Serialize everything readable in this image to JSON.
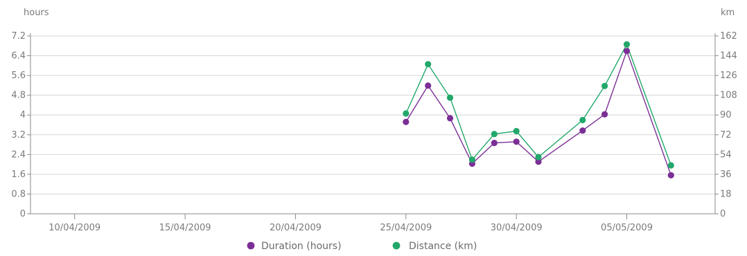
{
  "chart_data": {
    "type": "line",
    "left_axis_label": "hours",
    "right_axis_label": "km",
    "y_left_ticks": [
      "0",
      "0.8",
      "1.6",
      "2.4",
      "3.2",
      "4",
      "4.8",
      "5.6",
      "6.4",
      "7.2"
    ],
    "y_right_ticks": [
      "0",
      "18",
      "36",
      "54",
      "72",
      "90",
      "108",
      "126",
      "144",
      "162"
    ],
    "x_ticks": [
      "10/04/2009",
      "15/04/2009",
      "20/04/2009",
      "25/04/2009",
      "30/04/2009",
      "05/05/2009"
    ],
    "ylim_left": [
      0,
      7.2
    ],
    "ylim_right": [
      0,
      162
    ],
    "grid": true,
    "legend_placement": "bottom",
    "colors": {
      "duration": "#7b2f96",
      "distance": "#22a86b",
      "grid": "#d6d6d6",
      "axis": "#8a8a8a"
    },
    "series": [
      {
        "name": "Duration (hours)",
        "axis": "left",
        "x": [
          "25/04/2009",
          "26/04/2009",
          "27/04/2009",
          "28/04/2009",
          "29/04/2009",
          "30/04/2009",
          "01/05/2009",
          "03/05/2009",
          "04/05/2009",
          "05/05/2009",
          "07/05/2009"
        ],
        "values": [
          3.72,
          5.19,
          3.87,
          2.03,
          2.87,
          2.92,
          2.11,
          3.37,
          4.03,
          6.59,
          1.56
        ]
      },
      {
        "name": "Distance (km)",
        "axis": "right",
        "x": [
          "25/04/2009",
          "26/04/2009",
          "27/04/2009",
          "28/04/2009",
          "29/04/2009",
          "30/04/2009",
          "01/05/2009",
          "03/05/2009",
          "04/05/2009",
          "05/05/2009",
          "07/05/2009"
        ],
        "values": [
          91.4,
          136.3,
          105.8,
          49.3,
          72.7,
          75.3,
          51.7,
          85.4,
          116.4,
          154.4,
          44.1
        ]
      }
    ]
  }
}
